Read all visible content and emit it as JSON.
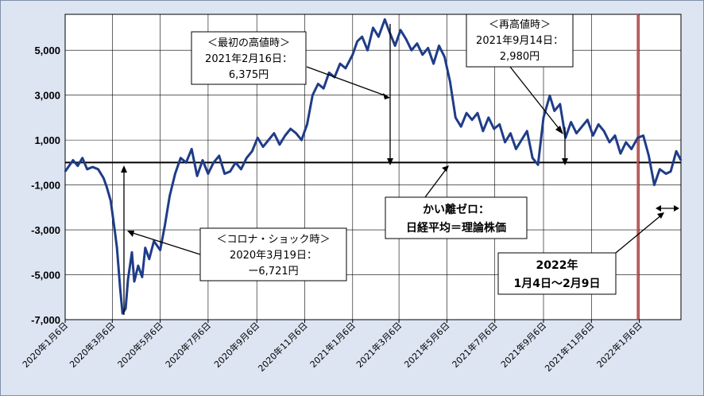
{
  "chart_data": {
    "type": "line",
    "title": "",
    "xlabel": "",
    "ylabel": "",
    "ylim": [
      -7000,
      6600
    ],
    "yticks": [
      5000,
      3000,
      1000,
      -1000,
      -3000,
      -5000,
      -7000
    ],
    "ytick_labels": [
      "5,000",
      "3,000",
      "1,000",
      "-1,000",
      "-3,000",
      "-5,000",
      "-7,000"
    ],
    "xlim": [
      "2020-01-06",
      "2022-02-28"
    ],
    "xtick_labels": [
      "2020年1月6日",
      "2020年3月6日",
      "2020年5月6日",
      "2020年7月6日",
      "2020年9月6日",
      "2020年11月6日",
      "2021年1月6日",
      "2021年3月6日",
      "2021年5月6日",
      "2021年7月6日",
      "2021年9月6日",
      "2021年11月6日",
      "2022年1月6日"
    ],
    "xtick_dates": [
      "2020-01-06",
      "2020-03-06",
      "2020-05-06",
      "2020-07-06",
      "2020-09-06",
      "2020-11-06",
      "2021-01-06",
      "2021-03-06",
      "2021-05-06",
      "2021-07-06",
      "2021-09-06",
      "2021-11-06",
      "2022-01-06"
    ],
    "grid": true,
    "reference_line": {
      "y": 0
    },
    "vertical_marker": {
      "x": "2022-01-04",
      "color": "#c0504d"
    },
    "series": [
      {
        "color": "#1f3c88",
        "x": [
          "2020-01-06",
          "2020-01-10",
          "2020-01-16",
          "2020-01-22",
          "2020-01-28",
          "2020-02-03",
          "2020-02-10",
          "2020-02-17",
          "2020-02-24",
          "2020-02-28",
          "2020-03-04",
          "2020-03-09",
          "2020-03-12",
          "2020-03-16",
          "2020-03-19",
          "2020-03-23",
          "2020-03-26",
          "2020-03-31",
          "2020-04-03",
          "2020-04-08",
          "2020-04-13",
          "2020-04-17",
          "2020-04-22",
          "2020-04-28",
          "2020-05-06",
          "2020-05-12",
          "2020-05-18",
          "2020-05-25",
          "2020-06-01",
          "2020-06-08",
          "2020-06-15",
          "2020-06-22",
          "2020-06-29",
          "2020-07-06",
          "2020-07-13",
          "2020-07-20",
          "2020-07-27",
          "2020-08-03",
          "2020-08-10",
          "2020-08-17",
          "2020-08-24",
          "2020-08-31",
          "2020-09-07",
          "2020-09-14",
          "2020-09-21",
          "2020-09-28",
          "2020-10-05",
          "2020-10-12",
          "2020-10-19",
          "2020-10-26",
          "2020-11-02",
          "2020-11-09",
          "2020-11-16",
          "2020-11-23",
          "2020-11-30",
          "2020-12-07",
          "2020-12-14",
          "2020-12-21",
          "2020-12-28",
          "2021-01-06",
          "2021-01-12",
          "2021-01-18",
          "2021-01-25",
          "2021-02-01",
          "2021-02-08",
          "2021-02-16",
          "2021-02-22",
          "2021-03-01",
          "2021-03-08",
          "2021-03-15",
          "2021-03-22",
          "2021-03-29",
          "2021-04-05",
          "2021-04-12",
          "2021-04-19",
          "2021-04-26",
          "2021-05-03",
          "2021-05-10",
          "2021-05-17",
          "2021-05-24",
          "2021-05-31",
          "2021-06-07",
          "2021-06-14",
          "2021-06-21",
          "2021-06-28",
          "2021-07-05",
          "2021-07-12",
          "2021-07-19",
          "2021-07-26",
          "2021-08-02",
          "2021-08-09",
          "2021-08-16",
          "2021-08-23",
          "2021-08-30",
          "2021-09-06",
          "2021-09-14",
          "2021-09-20",
          "2021-09-27",
          "2021-10-04",
          "2021-10-11",
          "2021-10-18",
          "2021-10-25",
          "2021-11-01",
          "2021-11-08",
          "2021-11-15",
          "2021-11-22",
          "2021-11-29",
          "2021-12-06",
          "2021-12-13",
          "2021-12-20",
          "2021-12-27",
          "2022-01-04",
          "2022-01-11",
          "2022-01-18",
          "2022-01-25",
          "2022-02-01",
          "2022-02-09",
          "2022-02-15",
          "2022-02-22",
          "2022-02-28"
        ],
        "y": [
          -400,
          -200,
          100,
          -150,
          200,
          -300,
          -200,
          -300,
          -700,
          -1100,
          -1700,
          -3000,
          -3800,
          -5600,
          -6721,
          -6500,
          -5200,
          -4000,
          -5300,
          -4600,
          -5100,
          -3800,
          -4300,
          -3500,
          -3900,
          -2800,
          -1500,
          -500,
          200,
          0,
          600,
          -600,
          100,
          -500,
          0,
          300,
          -500,
          -400,
          0,
          -300,
          200,
          500,
          1100,
          700,
          1000,
          1300,
          800,
          1200,
          1500,
          1300,
          1000,
          1700,
          3000,
          3500,
          3300,
          4000,
          3800,
          4400,
          4200,
          4800,
          5400,
          5600,
          5000,
          6000,
          5600,
          6375,
          5800,
          5200,
          5900,
          5500,
          5000,
          5300,
          4800,
          5100,
          4400,
          5200,
          4700,
          3600,
          2000,
          1600,
          2200,
          1900,
          2200,
          1400,
          2000,
          1500,
          1700,
          900,
          1300,
          600,
          1000,
          1400,
          200,
          -100,
          2000,
          2980,
          2300,
          2600,
          1100,
          1800,
          1300,
          1600,
          1900,
          1200,
          1700,
          1400,
          900,
          1200,
          400,
          900,
          600,
          1100,
          1200,
          300,
          -1000,
          -300,
          -500,
          -400,
          500,
          100
        ]
      }
    ],
    "annotations": [
      {
        "lines": [
          "＜最初の高値時＞",
          "2021年2月16日：",
          "6,375円"
        ]
      },
      {
        "lines": [
          "＜再高値時＞",
          "2021年9月14日：",
          "2,980円"
        ]
      },
      {
        "lines": [
          "＜コロナ・ショック時＞",
          "2020年3月19日：",
          "ー6,721円"
        ]
      },
      {
        "lines": [
          "かい離ゼロ：",
          "日経平均＝理論株価"
        ]
      },
      {
        "lines": [
          "2022年",
          "1月4日～2月9日"
        ]
      }
    ]
  }
}
